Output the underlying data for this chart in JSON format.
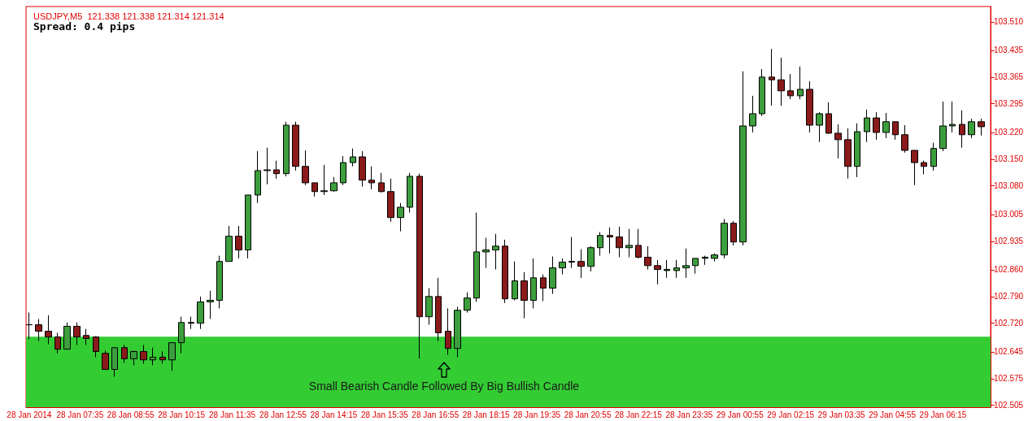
{
  "chart_data": {
    "type": "candlestick",
    "title": "USDJPY,M5  121.338 121.338 121.314 121.314",
    "subtitle": "Spread: 0.4 pips",
    "x": [
      "2014-01-28T06:15",
      "2014-01-28T06:30",
      "2014-01-28T06:45",
      "2014-01-28T07:00",
      "2014-01-28T07:15",
      "2014-01-28T07:30",
      "2014-01-28T07:45",
      "2014-01-28T08:00",
      "2014-01-28T08:15",
      "2014-01-28T08:30",
      "2014-01-28T08:45",
      "2014-01-28T09:00",
      "2014-01-28T09:15",
      "2014-01-28T09:30",
      "2014-01-28T09:45",
      "2014-01-28T10:00",
      "2014-01-28T10:15",
      "2014-01-28T10:30",
      "2014-01-28T10:45",
      "2014-01-28T11:00",
      "2014-01-28T11:15",
      "2014-01-28T11:30",
      "2014-01-28T11:45",
      "2014-01-28T12:00",
      "2014-01-28T12:15",
      "2014-01-28T12:30",
      "2014-01-28T12:45",
      "2014-01-28T13:00",
      "2014-01-28T13:15",
      "2014-01-28T13:30",
      "2014-01-28T13:45",
      "2014-01-28T14:00",
      "2014-01-28T14:15",
      "2014-01-28T14:30",
      "2014-01-28T14:45",
      "2014-01-28T15:00",
      "2014-01-28T15:15",
      "2014-01-28T15:30",
      "2014-01-28T15:45",
      "2014-01-28T16:00",
      "2014-01-28T16:15",
      "2014-01-28T16:30",
      "2014-01-28T16:45",
      "2014-01-28T17:00",
      "2014-01-28T17:15",
      "2014-01-28T17:30",
      "2014-01-28T17:45",
      "2014-01-28T18:00",
      "2014-01-28T18:15",
      "2014-01-28T18:30",
      "2014-01-28T18:45",
      "2014-01-28T19:00",
      "2014-01-28T19:15",
      "2014-01-28T19:30",
      "2014-01-28T19:45",
      "2014-01-28T20:00",
      "2014-01-28T20:15",
      "2014-01-28T20:30",
      "2014-01-28T20:45",
      "2014-01-28T21:00",
      "2014-01-28T21:15",
      "2014-01-28T21:30",
      "2014-01-28T21:45",
      "2014-01-28T22:00",
      "2014-01-28T22:15",
      "2014-01-28T22:30",
      "2014-01-28T22:45",
      "2014-01-28T23:00",
      "2014-01-28T23:15",
      "2014-01-28T23:30",
      "2014-01-28T23:45",
      "2014-01-29T00:00",
      "2014-01-29T00:15",
      "2014-01-29T00:30",
      "2014-01-29T00:45",
      "2014-01-29T01:00",
      "2014-01-29T01:15",
      "2014-01-29T01:30",
      "2014-01-29T01:45",
      "2014-01-29T02:00",
      "2014-01-29T02:15",
      "2014-01-29T02:30",
      "2014-01-29T02:45",
      "2014-01-29T03:00",
      "2014-01-29T03:15",
      "2014-01-29T03:30",
      "2014-01-29T03:45",
      "2014-01-29T04:00",
      "2014-01-29T04:15",
      "2014-01-29T04:30",
      "2014-01-29T04:45",
      "2014-01-29T05:00",
      "2014-01-29T05:15",
      "2014-01-29T05:30",
      "2014-01-29T05:45",
      "2014-01-29T06:00",
      "2014-01-29T06:15",
      "2014-01-29T06:30",
      "2014-01-29T06:45",
      "2014-01-29T07:00",
      "2014-01-29T07:15"
    ],
    "ohlc": [
      [
        102.716,
        102.748,
        102.678,
        102.716
      ],
      [
        102.716,
        102.731,
        102.673,
        102.699
      ],
      [
        102.699,
        102.741,
        102.665,
        102.684
      ],
      [
        102.684,
        102.695,
        102.641,
        102.652
      ],
      [
        102.652,
        102.722,
        102.652,
        102.712
      ],
      [
        102.712,
        102.722,
        102.663,
        102.684
      ],
      [
        102.688,
        102.705,
        102.663,
        102.68
      ],
      [
        102.684,
        102.686,
        102.631,
        102.646
      ],
      [
        102.641,
        102.648,
        102.599,
        102.599
      ],
      [
        102.599,
        102.656,
        102.58,
        102.656
      ],
      [
        102.656,
        102.663,
        102.616,
        102.627
      ],
      [
        102.627,
        102.648,
        102.61,
        102.646
      ],
      [
        102.646,
        102.663,
        102.614,
        102.624
      ],
      [
        102.624,
        102.656,
        102.61,
        102.631
      ],
      [
        102.631,
        102.646,
        102.614,
        102.624
      ],
      [
        102.624,
        102.669,
        102.595,
        102.669
      ],
      [
        102.669,
        102.737,
        102.641,
        102.722
      ],
      [
        102.722,
        102.737,
        102.705,
        102.72
      ],
      [
        102.72,
        102.79,
        102.705,
        102.776
      ],
      [
        102.776,
        102.805,
        102.731,
        102.78
      ],
      [
        102.78,
        102.897,
        102.759,
        102.882
      ],
      [
        102.882,
        102.975,
        102.882,
        102.948
      ],
      [
        102.948,
        102.975,
        102.89,
        102.912
      ],
      [
        102.912,
        103.056,
        102.89,
        103.056
      ],
      [
        103.056,
        103.171,
        103.035,
        103.12
      ],
      [
        103.12,
        103.18,
        103.084,
        103.122
      ],
      [
        103.122,
        103.146,
        103.099,
        103.112
      ],
      [
        103.112,
        103.248,
        103.105,
        103.239
      ],
      [
        103.239,
        103.248,
        103.12,
        103.131
      ],
      [
        103.131,
        103.173,
        103.082,
        103.088
      ],
      [
        103.088,
        103.088,
        103.052,
        103.065
      ],
      [
        103.065,
        103.135,
        103.056,
        103.067
      ],
      [
        103.067,
        103.103,
        103.065,
        103.088
      ],
      [
        103.088,
        103.158,
        103.082,
        103.141
      ],
      [
        103.141,
        103.178,
        103.131,
        103.156
      ],
      [
        103.156,
        103.171,
        103.078,
        103.095
      ],
      [
        103.095,
        103.131,
        103.071,
        103.088
      ],
      [
        103.088,
        103.114,
        103.063,
        103.065
      ],
      [
        103.065,
        103.099,
        102.986,
        102.997
      ],
      [
        102.997,
        103.035,
        102.961,
        103.024
      ],
      [
        103.024,
        103.114,
        103.01,
        103.105
      ],
      [
        103.105,
        103.112,
        102.627,
        102.737
      ],
      [
        102.737,
        102.812,
        102.716,
        102.79
      ],
      [
        102.79,
        102.839,
        102.673,
        102.695
      ],
      [
        102.699,
        102.759,
        102.637,
        102.654
      ],
      [
        102.654,
        102.763,
        102.631,
        102.754
      ],
      [
        102.754,
        102.801,
        102.748,
        102.786
      ],
      [
        102.786,
        103.01,
        102.776,
        102.907
      ],
      [
        102.907,
        102.944,
        102.865,
        102.912
      ],
      [
        102.912,
        102.954,
        102.861,
        102.922
      ],
      [
        102.922,
        102.939,
        102.773,
        102.784
      ],
      [
        102.784,
        102.882,
        102.78,
        102.831
      ],
      [
        102.831,
        102.854,
        102.733,
        102.78
      ],
      [
        102.78,
        102.89,
        102.759,
        102.839
      ],
      [
        102.839,
        102.848,
        102.778,
        102.812
      ],
      [
        102.812,
        102.895,
        102.797,
        102.865
      ],
      [
        102.865,
        102.89,
        102.848,
        102.88
      ],
      [
        102.88,
        102.946,
        102.865,
        102.882
      ],
      [
        102.882,
        102.914,
        102.839,
        102.869
      ],
      [
        102.869,
        102.922,
        102.856,
        102.918
      ],
      [
        102.918,
        102.959,
        102.897,
        102.95
      ],
      [
        102.95,
        102.971,
        102.903,
        102.946
      ],
      [
        102.946,
        102.973,
        102.893,
        102.918
      ],
      [
        102.918,
        102.967,
        102.893,
        102.924
      ],
      [
        102.924,
        102.967,
        102.89,
        102.893
      ],
      [
        102.893,
        102.922,
        102.861,
        102.871
      ],
      [
        102.871,
        102.886,
        102.822,
        102.861
      ],
      [
        102.858,
        102.886,
        102.839,
        102.861
      ],
      [
        102.858,
        102.886,
        102.839,
        102.865
      ],
      [
        102.865,
        102.916,
        102.839,
        102.871
      ],
      [
        102.871,
        102.89,
        102.85,
        102.89
      ],
      [
        102.89,
        102.897,
        102.873,
        102.893
      ],
      [
        102.89,
        102.903,
        102.882,
        102.899
      ],
      [
        102.899,
        102.993,
        102.89,
        102.982
      ],
      [
        102.982,
        102.988,
        102.924,
        102.933
      ],
      [
        102.933,
        103.38,
        102.924,
        103.237
      ],
      [
        103.237,
        103.316,
        103.22,
        103.269
      ],
      [
        103.269,
        103.386,
        103.263,
        103.365
      ],
      [
        103.365,
        103.439,
        103.29,
        103.358
      ],
      [
        103.358,
        103.416,
        103.29,
        103.329
      ],
      [
        103.329,
        103.373,
        103.307,
        103.316
      ],
      [
        103.316,
        103.393,
        103.307,
        103.333
      ],
      [
        103.333,
        103.354,
        103.22,
        103.239
      ],
      [
        103.239,
        103.273,
        103.195,
        103.269
      ],
      [
        103.269,
        103.299,
        103.216,
        103.218
      ],
      [
        103.218,
        103.241,
        103.152,
        103.201
      ],
      [
        103.201,
        103.231,
        103.099,
        103.131
      ],
      [
        103.131,
        103.244,
        103.103,
        103.222
      ],
      [
        103.222,
        103.28,
        103.195,
        103.258
      ],
      [
        103.258,
        103.273,
        103.201,
        103.22
      ],
      [
        103.22,
        103.271,
        103.205,
        103.248
      ],
      [
        103.248,
        103.248,
        103.201,
        103.214
      ],
      [
        103.214,
        103.239,
        103.167,
        103.173
      ],
      [
        103.173,
        103.173,
        103.082,
        103.141
      ],
      [
        103.141,
        103.146,
        103.11,
        103.131
      ],
      [
        103.131,
        103.193,
        103.12,
        103.178
      ],
      [
        103.178,
        103.301,
        103.171,
        103.237
      ],
      [
        103.237,
        103.301,
        103.22,
        103.241
      ],
      [
        103.241,
        103.278,
        103.18,
        103.214
      ],
      [
        103.214,
        103.256,
        103.205,
        103.248
      ],
      [
        103.248,
        103.256,
        103.212,
        103.235
      ]
    ],
    "xlim": [
      "2014-01-28T06:10",
      "2014-01-29T07:30"
    ],
    "xticks": [
      {
        "value": "2014-01-28T06:15",
        "label": "28 Jan 2014"
      },
      {
        "value": "2014-01-28T07:35",
        "label": "28 Jan 07:35"
      },
      {
        "value": "2014-01-28T08:55",
        "label": "28 Jan 08:55"
      },
      {
        "value": "2014-01-28T10:15",
        "label": "28 Jan 10:15"
      },
      {
        "value": "2014-01-28T11:35",
        "label": "28 Jan 11:35"
      },
      {
        "value": "2014-01-28T12:55",
        "label": "28 Jan 12:55"
      },
      {
        "value": "2014-01-28T14:15",
        "label": "28 Jan 14:15"
      },
      {
        "value": "2014-01-28T15:35",
        "label": "28 Jan 15:35"
      },
      {
        "value": "2014-01-28T16:55",
        "label": "28 Jan 16:55"
      },
      {
        "value": "2014-01-28T18:15",
        "label": "28 Jan 18:15"
      },
      {
        "value": "2014-01-28T19:35",
        "label": "28 Jan 19:35"
      },
      {
        "value": "2014-01-28T20:55",
        "label": "28 Jan 20:55"
      },
      {
        "value": "2014-01-28T22:15",
        "label": "28 Jan 22:15"
      },
      {
        "value": "2014-01-28T23:35",
        "label": "28 Jan 23:35"
      },
      {
        "value": "2014-01-29T00:55",
        "label": "29 Jan 00:55"
      },
      {
        "value": "2014-01-29T02:15",
        "label": "29 Jan 02:15"
      },
      {
        "value": "2014-01-29T03:35",
        "label": "29 Jan 03:35"
      },
      {
        "value": "2014-01-29T04:55",
        "label": "29 Jan 04:55"
      },
      {
        "value": "2014-01-29T06:15",
        "label": "29 Jan 06:15"
      }
    ],
    "ylim": [
      102.5,
      103.55
    ],
    "yticks": [
      {
        "value": 102.505,
        "label": "102.505"
      },
      {
        "value": 102.575,
        "label": "102.575"
      },
      {
        "value": 102.645,
        "label": "102.645"
      },
      {
        "value": 102.72,
        "label": "102.720"
      },
      {
        "value": 102.79,
        "label": "102.790"
      },
      {
        "value": 102.86,
        "label": "102.860"
      },
      {
        "value": 102.935,
        "label": "102.935"
      },
      {
        "value": 103.005,
        "label": "103.005"
      },
      {
        "value": 103.08,
        "label": "103.080"
      },
      {
        "value": 103.15,
        "label": "103.150"
      },
      {
        "value": 103.22,
        "label": "103.220"
      },
      {
        "value": 103.295,
        "label": "103.295"
      },
      {
        "value": 103.365,
        "label": "103.365"
      },
      {
        "value": 103.435,
        "label": "103.435"
      },
      {
        "value": 103.51,
        "label": "103.510"
      }
    ],
    "bands": [
      {
        "axis": "y",
        "from": 102.5,
        "to": 102.685,
        "color": "#33cc33"
      }
    ],
    "annotations": [
      "Small Bearish Candle Followed By Big Bullish Candle"
    ]
  }
}
